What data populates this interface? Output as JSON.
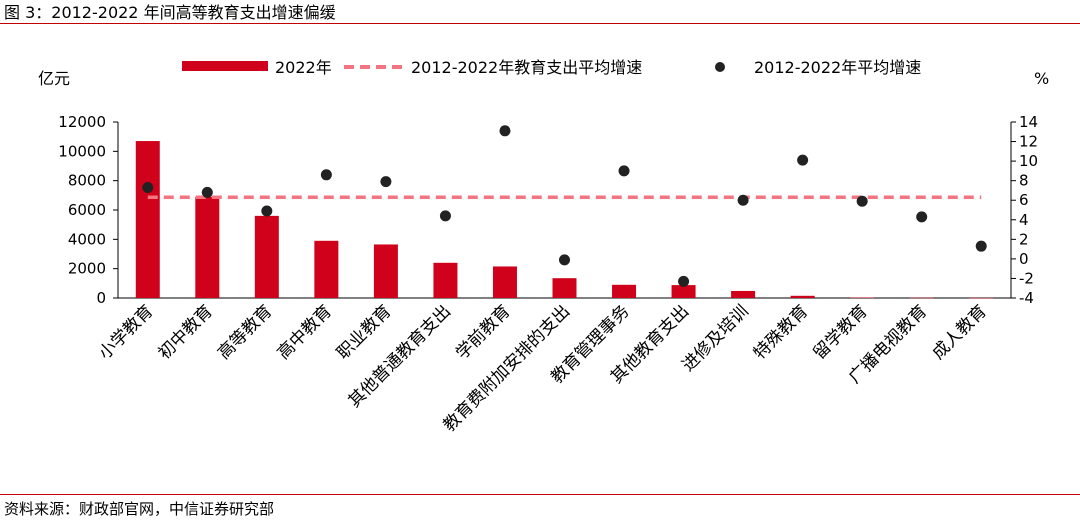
{
  "header": {
    "title": "图 3：2012-2022 年间高等教育支出增速偏缓"
  },
  "footer": {
    "source": "资料来源：财政部官网，中信证券研究部"
  },
  "colors": {
    "bar": "#d0021b",
    "avg_line": "#f4757f",
    "dot": "#222222",
    "rule": "#c00000"
  },
  "chart_data": {
    "type": "bar",
    "title": "",
    "xlabel": "",
    "ylabel": "亿元",
    "y2label": "%",
    "ylim": [
      0,
      12000
    ],
    "yticks": [
      0,
      2000,
      4000,
      6000,
      8000,
      10000,
      12000
    ],
    "y2lim": [
      -4,
      14
    ],
    "y2ticks": [
      -4,
      -2,
      0,
      2,
      4,
      6,
      8,
      10,
      12,
      14
    ],
    "legend_position": "top",
    "categories": [
      "小学教育",
      "初中教育",
      "高等教育",
      "高中教育",
      "职业教育",
      "其他普通教育支出",
      "学前教育",
      "教育费附加安排的支出",
      "教育管理事务",
      "其他教育支出",
      "进修及培训",
      "特殊教育",
      "留学教育",
      "广播电视教育",
      "成人教育"
    ],
    "series": [
      {
        "name": "2022年",
        "type": "bar",
        "axis": "left",
        "values": [
          10700,
          6900,
          5600,
          3900,
          3650,
          2400,
          2150,
          1350,
          900,
          880,
          480,
          150,
          30,
          20,
          10
        ]
      },
      {
        "name": "2012-2022年教育支出平均增速",
        "type": "line",
        "style": "dashed",
        "axis": "right",
        "values": [
          6.3,
          6.3,
          6.3,
          6.3,
          6.3,
          6.3,
          6.3,
          6.3,
          6.3,
          6.3,
          6.3,
          6.3,
          6.3,
          6.3,
          6.3
        ]
      },
      {
        "name": "2012-2022年平均增速",
        "type": "scatter",
        "axis": "right",
        "values": [
          7.3,
          6.8,
          4.9,
          8.6,
          7.9,
          4.4,
          13.1,
          -0.1,
          9.0,
          -2.3,
          6.0,
          10.1,
          5.9,
          4.3,
          1.3
        ]
      }
    ]
  }
}
